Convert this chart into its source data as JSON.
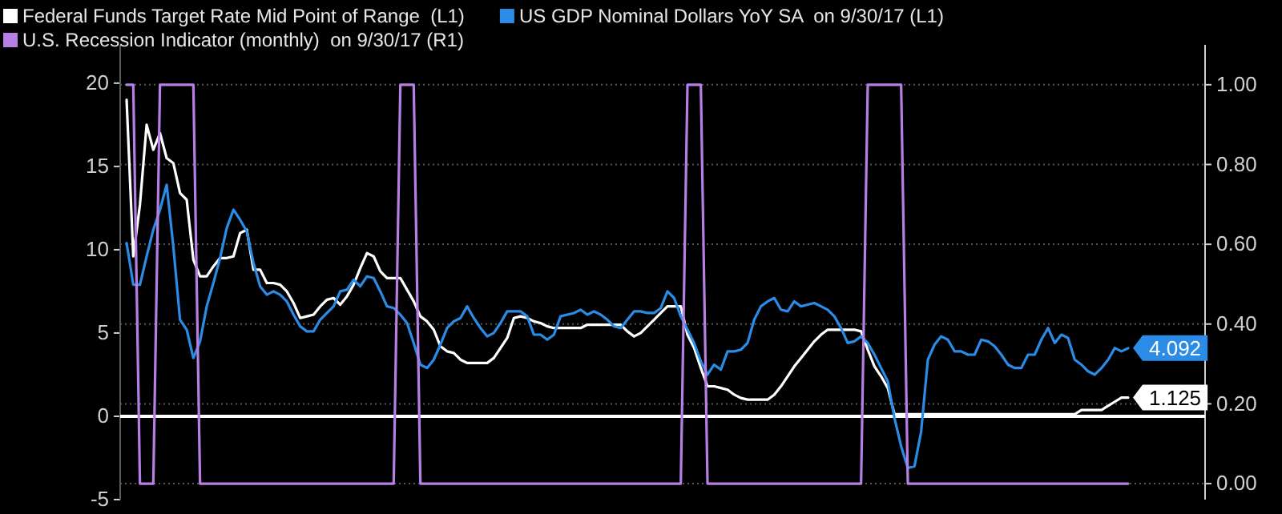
{
  "chart_data": {
    "type": "line",
    "categories": [
      null,
      null,
      null,
      null,
      null,
      null,
      null,
      null,
      null,
      null,
      null,
      null,
      null,
      null,
      null,
      null,
      null,
      null,
      null,
      null,
      null,
      null,
      null,
      null,
      null,
      null,
      null,
      null,
      null,
      null,
      null,
      null,
      null,
      null,
      null,
      null,
      null,
      null,
      null,
      null,
      null,
      null,
      null,
      null,
      null,
      null,
      null,
      null,
      null,
      null,
      null,
      null,
      null,
      null,
      null,
      null,
      null,
      null,
      null,
      null,
      null,
      null,
      null,
      null,
      null,
      null,
      null,
      null,
      null,
      null,
      null,
      null,
      null,
      null,
      null,
      null,
      null,
      null,
      null,
      null,
      null,
      null,
      null,
      null,
      null,
      null,
      null,
      null,
      null,
      null,
      null,
      null,
      null,
      null,
      null,
      null,
      null,
      null,
      null,
      null,
      null,
      null,
      null,
      null,
      null,
      null,
      null,
      null,
      null,
      null,
      null,
      null,
      null,
      null,
      null,
      null,
      null,
      null,
      null,
      null,
      null,
      null,
      null,
      null,
      null,
      null,
      null,
      null,
      null,
      null,
      null,
      null,
      null,
      null,
      null,
      null,
      null,
      null,
      null,
      null,
      null,
      null,
      null,
      null,
      null,
      null,
      null,
      null,
      null,
      null,
      null
    ],
    "ylim": [
      -5,
      22.3
    ],
    "yticks": [
      -5,
      0,
      5,
      10,
      15,
      20
    ],
    "y2lim": [
      -0.04,
      1.1
    ],
    "y2ticks": [
      {
        "value": 0,
        "label": "0.00"
      },
      {
        "value": 0.2,
        "label": "0.20"
      },
      {
        "value": 0.4,
        "label": "0.40"
      },
      {
        "value": 0.6,
        "label": "0.60"
      },
      {
        "value": 0.8,
        "label": "0.80"
      },
      {
        "value": 1,
        "label": "1.00"
      }
    ],
    "grid": "y",
    "legend": "top left",
    "ref_lines": [
      {
        "axis": "y",
        "value": 0,
        "color": "#ffffff"
      }
    ],
    "series": [
      {
        "name": "Federal Funds Target Rate Mid Point of Range  (L1)",
        "color": "#ffffff",
        "values": [
          19,
          9.6,
          12.7,
          17.5,
          16,
          17,
          15.5,
          15.2,
          13.4,
          13.0,
          9.4,
          8.4,
          8.4,
          9.0,
          9.5,
          9.5,
          9.6,
          11.0,
          11.2,
          8.8,
          8.8,
          8.0,
          8.0,
          7.9,
          7.5,
          6.8,
          5.9,
          6.0,
          6.1,
          6.6,
          7.0,
          7.1,
          6.7,
          7.2,
          7.9,
          8.9,
          9.8,
          9.6,
          8.7,
          8.3,
          8.3,
          8.3,
          7.6,
          6.9,
          6.0,
          5.7,
          5.2,
          4.2,
          3.9,
          3.8,
          3.4,
          3.2,
          3.2,
          3.2,
          3.2,
          3.5,
          4.1,
          4.7,
          5.9,
          6.0,
          5.9,
          5.7,
          5.6,
          5.4,
          5.3,
          5.3,
          5.3,
          5.3,
          5.3,
          5.5,
          5.5,
          5.5,
          5.5,
          5.5,
          5.5,
          5.1,
          4.8,
          5.0,
          5.4,
          5.8,
          6.2,
          6.6,
          6.6,
          6.6,
          4.9,
          4.1,
          2.9,
          1.8,
          1.8,
          1.7,
          1.6,
          1.3,
          1.1,
          1.0,
          1.0,
          1.0,
          1.0,
          1.3,
          1.8,
          2.4,
          3.0,
          3.5,
          4.0,
          4.5,
          4.9,
          5.2,
          5.2,
          5.2,
          5.2,
          5.2,
          5.1,
          4.0,
          3.0,
          2.4,
          1.7,
          0.125,
          0.125,
          0.125,
          0.125,
          0.125,
          0.125,
          0.125,
          0.125,
          0.125,
          0.125,
          0.125,
          0.125,
          0.125,
          0.125,
          0.125,
          0.125,
          0.125,
          0.125,
          0.125,
          0.125,
          0.125,
          0.125,
          0.125,
          0.125,
          0.125,
          0.125,
          0.125,
          0.125,
          0.375,
          0.375,
          0.375,
          0.375,
          0.625,
          0.875,
          1.125,
          1.125
        ],
        "value_labels": [
          null,
          null,
          null,
          null,
          null,
          null,
          null,
          null,
          null,
          null,
          null,
          null,
          null,
          null,
          null,
          null,
          null,
          null,
          null,
          null,
          null,
          null,
          null,
          null,
          null,
          null,
          null,
          null,
          null,
          null,
          null,
          null,
          null,
          null,
          null,
          null,
          null,
          null,
          null,
          null,
          null,
          null,
          null,
          null,
          null,
          null,
          null,
          null,
          null,
          null,
          null,
          null,
          null,
          null,
          null,
          null,
          null,
          null,
          null,
          null,
          null,
          null,
          null,
          null,
          null,
          null,
          null,
          null,
          null,
          null,
          null,
          null,
          null,
          null,
          null,
          null,
          null,
          null,
          null,
          null,
          null,
          null,
          null,
          null,
          null,
          null,
          null,
          null,
          null,
          null,
          null,
          null,
          null,
          null,
          null,
          null,
          null,
          null,
          null,
          null,
          null,
          null,
          null,
          null,
          null,
          null,
          null,
          null,
          null,
          null,
          null,
          null,
          null,
          null,
          null,
          null,
          null,
          null,
          null,
          null,
          null,
          null,
          null,
          null,
          null,
          null,
          null,
          null,
          null,
          null,
          null,
          null,
          null,
          null,
          null,
          null,
          null,
          null,
          null,
          null,
          null,
          null,
          null,
          null,
          null,
          null,
          null,
          null,
          null,
          null,
          "1.125"
        ]
      },
      {
        "name": "US GDP Nominal Dollars YoY SA  on 9/30/17 (L1)",
        "color": "#2a8ce6",
        "values": [
          10.4,
          7.9,
          7.9,
          9.6,
          11.2,
          12.4,
          13.9,
          10.2,
          5.8,
          5.2,
          3.5,
          4.5,
          6.6,
          8.0,
          9.5,
          11.3,
          12.4,
          11.8,
          11.1,
          9.2,
          7.8,
          7.3,
          7.5,
          7.3,
          6.9,
          6.1,
          5.4,
          5.1,
          5.1,
          5.8,
          6.2,
          6.6,
          7.5,
          7.6,
          8.2,
          7.8,
          8.4,
          8.3,
          7.5,
          6.6,
          6.5,
          6.1,
          5.6,
          4.4,
          3.1,
          2.9,
          3.4,
          4.3,
          5.3,
          5.7,
          5.9,
          6.6,
          5.9,
          5.3,
          4.8,
          5.0,
          5.6,
          6.3,
          6.3,
          6.3,
          6.0,
          4.9,
          4.9,
          4.6,
          4.9,
          6.0,
          6.1,
          6.2,
          6.4,
          6.1,
          6.3,
          6.1,
          5.8,
          5.4,
          5.3,
          5.8,
          6.3,
          6.3,
          6.2,
          6.2,
          6.5,
          7.5,
          7.1,
          6.0,
          5.2,
          4.4,
          3.3,
          2.5,
          3.1,
          2.8,
          3.9,
          3.9,
          4.0,
          4.4,
          5.8,
          6.6,
          6.9,
          7.1,
          6.4,
          6.3,
          6.9,
          6.6,
          6.7,
          6.8,
          6.6,
          6.4,
          6.0,
          5.3,
          4.4,
          4.5,
          4.8,
          4.4,
          3.7,
          2.9,
          2.1,
          -0.1,
          -1.8,
          -3.1,
          -3.0,
          -0.9,
          3.4,
          4.3,
          4.8,
          4.6,
          3.9,
          3.9,
          3.7,
          3.7,
          4.6,
          4.5,
          4.2,
          3.7,
          3.1,
          2.9,
          2.9,
          3.7,
          3.7,
          4.6,
          5.3,
          4.4,
          4.9,
          4.7,
          3.4,
          3.1,
          2.7,
          2.5,
          2.9,
          3.4,
          4.1,
          3.9,
          4.092
        ],
        "value_labels": [
          null,
          null,
          null,
          null,
          null,
          null,
          null,
          null,
          null,
          null,
          null,
          null,
          null,
          null,
          null,
          null,
          null,
          null,
          null,
          null,
          null,
          null,
          null,
          null,
          null,
          null,
          null,
          null,
          null,
          null,
          null,
          null,
          null,
          null,
          null,
          null,
          null,
          null,
          null,
          null,
          null,
          null,
          null,
          null,
          null,
          null,
          null,
          null,
          null,
          null,
          null,
          null,
          null,
          null,
          null,
          null,
          null,
          null,
          null,
          null,
          null,
          null,
          null,
          null,
          null,
          null,
          null,
          null,
          null,
          null,
          null,
          null,
          null,
          null,
          null,
          null,
          null,
          null,
          null,
          null,
          null,
          null,
          null,
          null,
          null,
          null,
          null,
          null,
          null,
          null,
          null,
          null,
          null,
          null,
          null,
          null,
          null,
          null,
          null,
          null,
          null,
          null,
          null,
          null,
          null,
          null,
          null,
          null,
          null,
          null,
          null,
          null,
          null,
          null,
          null,
          null,
          null,
          null,
          null,
          null,
          null,
          null,
          null,
          null,
          null,
          null,
          null,
          null,
          null,
          null,
          null,
          null,
          null,
          null,
          null,
          null,
          null,
          null,
          null,
          null,
          null,
          null,
          null,
          null,
          null,
          null,
          null,
          null,
          null,
          null,
          "4.092"
        ]
      },
      {
        "name": "U.S. Recession Indicator (monthly)  on 9/30/17 (R1)",
        "color": "#b77fe3",
        "type": "line",
        "axis": "y2",
        "values": [
          1,
          1,
          0,
          0,
          0,
          1,
          1,
          1,
          1,
          1,
          1,
          0,
          0,
          0,
          0,
          0,
          0,
          0,
          0,
          0,
          0,
          0,
          0,
          0,
          0,
          0,
          0,
          0,
          0,
          0,
          0,
          0,
          0,
          0,
          0,
          0,
          0,
          0,
          0,
          0,
          0,
          1,
          1,
          1,
          0,
          0,
          0,
          0,
          0,
          0,
          0,
          0,
          0,
          0,
          0,
          0,
          0,
          0,
          0,
          0,
          0,
          0,
          0,
          0,
          0,
          0,
          0,
          0,
          0,
          0,
          0,
          0,
          0,
          0,
          0,
          0,
          0,
          0,
          0,
          0,
          0,
          0,
          0,
          0,
          1,
          1,
          1,
          0,
          0,
          0,
          0,
          0,
          0,
          0,
          0,
          0,
          0,
          0,
          0,
          0,
          0,
          0,
          0,
          0,
          0,
          0,
          0,
          0,
          0,
          0,
          0,
          1,
          1,
          1,
          1,
          1,
          1,
          0,
          0,
          0,
          0,
          0,
          0,
          0,
          0,
          0,
          0,
          0,
          0,
          0,
          0,
          0,
          0,
          0,
          0,
          0,
          0,
          0,
          0,
          0,
          0,
          0,
          0,
          0,
          0,
          0,
          0,
          0,
          0,
          0,
          0
        ]
      }
    ]
  }
}
